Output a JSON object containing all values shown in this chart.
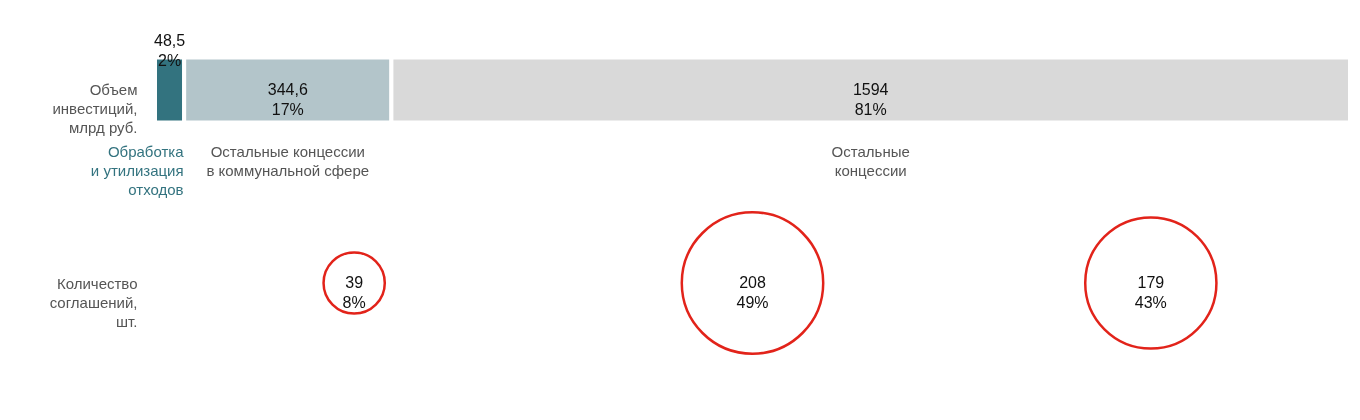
{
  "chart_data": [
    {
      "type": "bar",
      "orientation": "horizontal",
      "stacked": true,
      "categories": [
        "Объем\nинвестиций,\nмлрд руб."
      ],
      "series": [
        {
          "name": "Обработка\nи утилизация\nотходов",
          "color": "#33737f",
          "values": [
            48.5
          ],
          "value_labels": [
            "48,5\n2%"
          ]
        },
        {
          "name": "Остальные концессии\nв коммунальной сфере",
          "color": "#b3c5ca",
          "values": [
            344.6
          ],
          "value_labels": [
            "344,6\n17%"
          ]
        },
        {
          "name": "Остальные\nконцессии",
          "color": "#d9d9d9",
          "values": [
            1594
          ],
          "value_labels": [
            "1594\n81%"
          ]
        }
      ]
    },
    {
      "type": "other",
      "ylabel": "Количество\nсоглашений,\nшт.",
      "categories": [
        null,
        null,
        null
      ],
      "color": "#e2231a",
      "values": [
        39,
        208,
        179
      ],
      "value_labels": [
        "39\n8%",
        "208\n49%",
        "179\n43%"
      ]
    }
  ]
}
